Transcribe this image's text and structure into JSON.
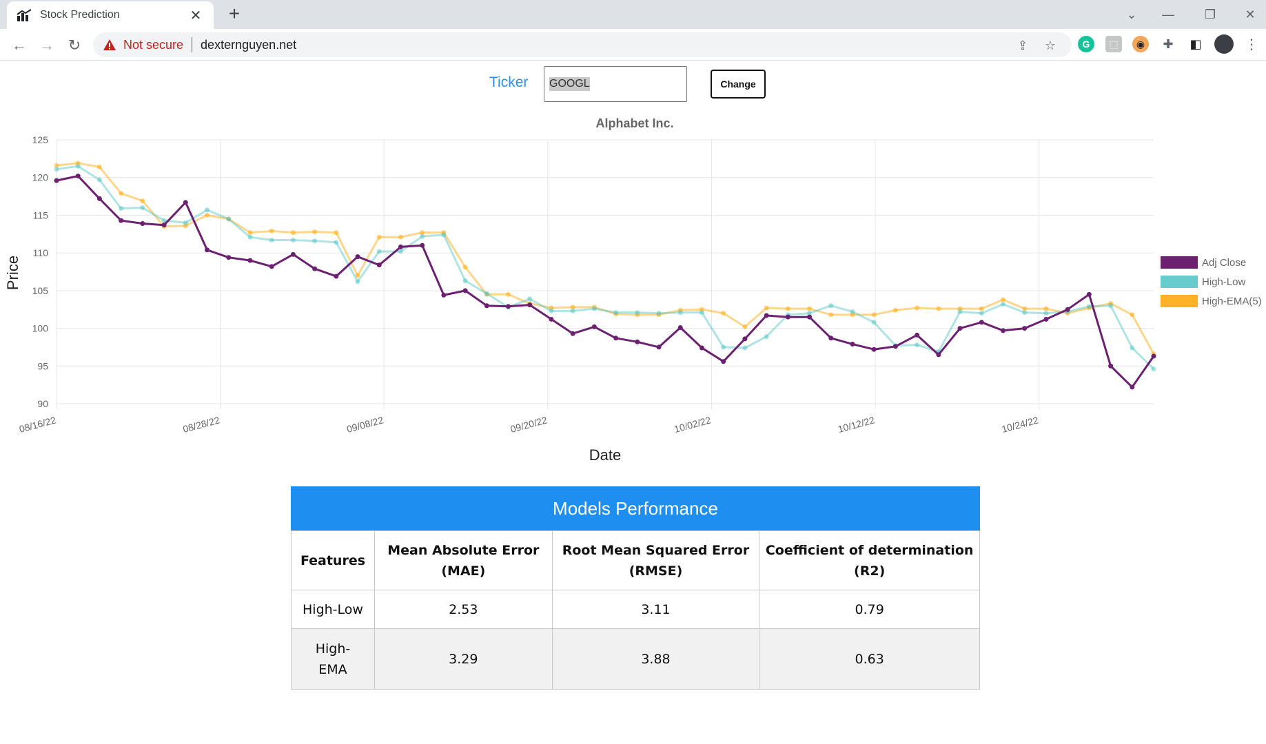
{
  "browser": {
    "tab_title": "Stock Prediction",
    "security_label": "Not secure",
    "url": "dexternguyen.net"
  },
  "form": {
    "ticker_label": "Ticker",
    "ticker_value": "GOOGL",
    "change_label": "Change"
  },
  "chart_data": {
    "type": "line",
    "title": "Alphabet Inc.",
    "xlabel": "Date",
    "ylabel": "Price",
    "ylim": [
      90,
      125
    ],
    "yticks": [
      90,
      95,
      100,
      105,
      110,
      115,
      120,
      125
    ],
    "xtick_labels": [
      "08/16/22",
      "08/28/22",
      "09/08/22",
      "09/20/22",
      "10/02/22",
      "10/12/22",
      "10/24/22"
    ],
    "grid": true,
    "legend_position": "right",
    "series": [
      {
        "name": "Adj Close",
        "color": "#6b2170",
        "values": [
          119.6,
          120.2,
          117.2,
          114.3,
          113.9,
          113.7,
          116.7,
          110.4,
          109.4,
          109.0,
          108.2,
          109.8,
          107.9,
          106.9,
          109.5,
          108.4,
          110.8,
          111.0,
          104.4,
          105.0,
          103.0,
          102.9,
          103.1,
          101.2,
          99.3,
          100.2,
          98.7,
          98.2,
          97.5,
          100.1,
          97.4,
          95.6,
          98.6,
          101.7,
          101.5,
          101.5,
          98.7,
          97.9,
          97.2,
          97.6,
          99.1,
          96.5,
          100.0,
          100.8,
          99.7,
          100.0,
          101.2,
          102.5,
          104.5,
          95.0,
          92.2,
          96.3
        ]
      },
      {
        "name": "High-Low",
        "color": "#4fc3c3",
        "values": [
          121.1,
          121.5,
          119.7,
          115.9,
          116.0,
          114.3,
          114.0,
          115.7,
          114.5,
          112.1,
          111.7,
          111.7,
          111.6,
          111.4,
          106.2,
          110.2,
          110.2,
          112.2,
          112.4,
          106.3,
          104.6,
          102.8,
          103.9,
          102.3,
          102.3,
          102.6,
          102.1,
          102.1,
          102.0,
          102.1,
          102.1,
          97.5,
          97.4,
          98.9,
          101.8,
          102.0,
          103.0,
          102.2,
          100.8,
          97.7,
          97.8,
          96.9,
          102.2,
          102.0,
          103.2,
          102.1,
          102.0,
          102.2,
          102.9,
          103.0,
          97.4,
          94.6
        ]
      },
      {
        "name": "High-EMA(5)",
        "color": "#ffa500",
        "values": [
          121.6,
          121.9,
          121.4,
          117.9,
          116.9,
          113.5,
          113.6,
          115.0,
          114.5,
          112.7,
          112.9,
          112.7,
          112.8,
          112.7,
          107.0,
          112.1,
          112.1,
          112.7,
          112.7,
          108.1,
          104.5,
          104.5,
          103.3,
          102.7,
          102.8,
          102.8,
          101.9,
          101.8,
          101.8,
          102.4,
          102.5,
          102.0,
          100.2,
          102.7,
          102.6,
          102.6,
          101.8,
          101.8,
          101.8,
          102.4,
          102.7,
          102.6,
          102.6,
          102.6,
          103.8,
          102.6,
          102.6,
          102.0,
          102.7,
          103.3,
          101.8,
          96.6
        ]
      }
    ]
  },
  "performance": {
    "title": "Models Performance",
    "headers": {
      "features": "Features",
      "mae_line1": "Mean Absolute Error",
      "mae_line2": "(MAE)",
      "rmse_line1": "Root Mean Squared Error",
      "rmse_line2": "(RMSE)",
      "r2_line1": "Coefficient of determination",
      "r2_line2": "(R2)"
    },
    "rows": [
      {
        "feature": "High-Low",
        "feature_line1": "High-Low",
        "feature_line2": "",
        "mae": "2.53",
        "rmse": "3.11",
        "r2": "0.79"
      },
      {
        "feature": "High-EMA",
        "feature_line1": "High-",
        "feature_line2": "EMA",
        "mae": "3.29",
        "rmse": "3.88",
        "r2": "0.63"
      }
    ]
  }
}
